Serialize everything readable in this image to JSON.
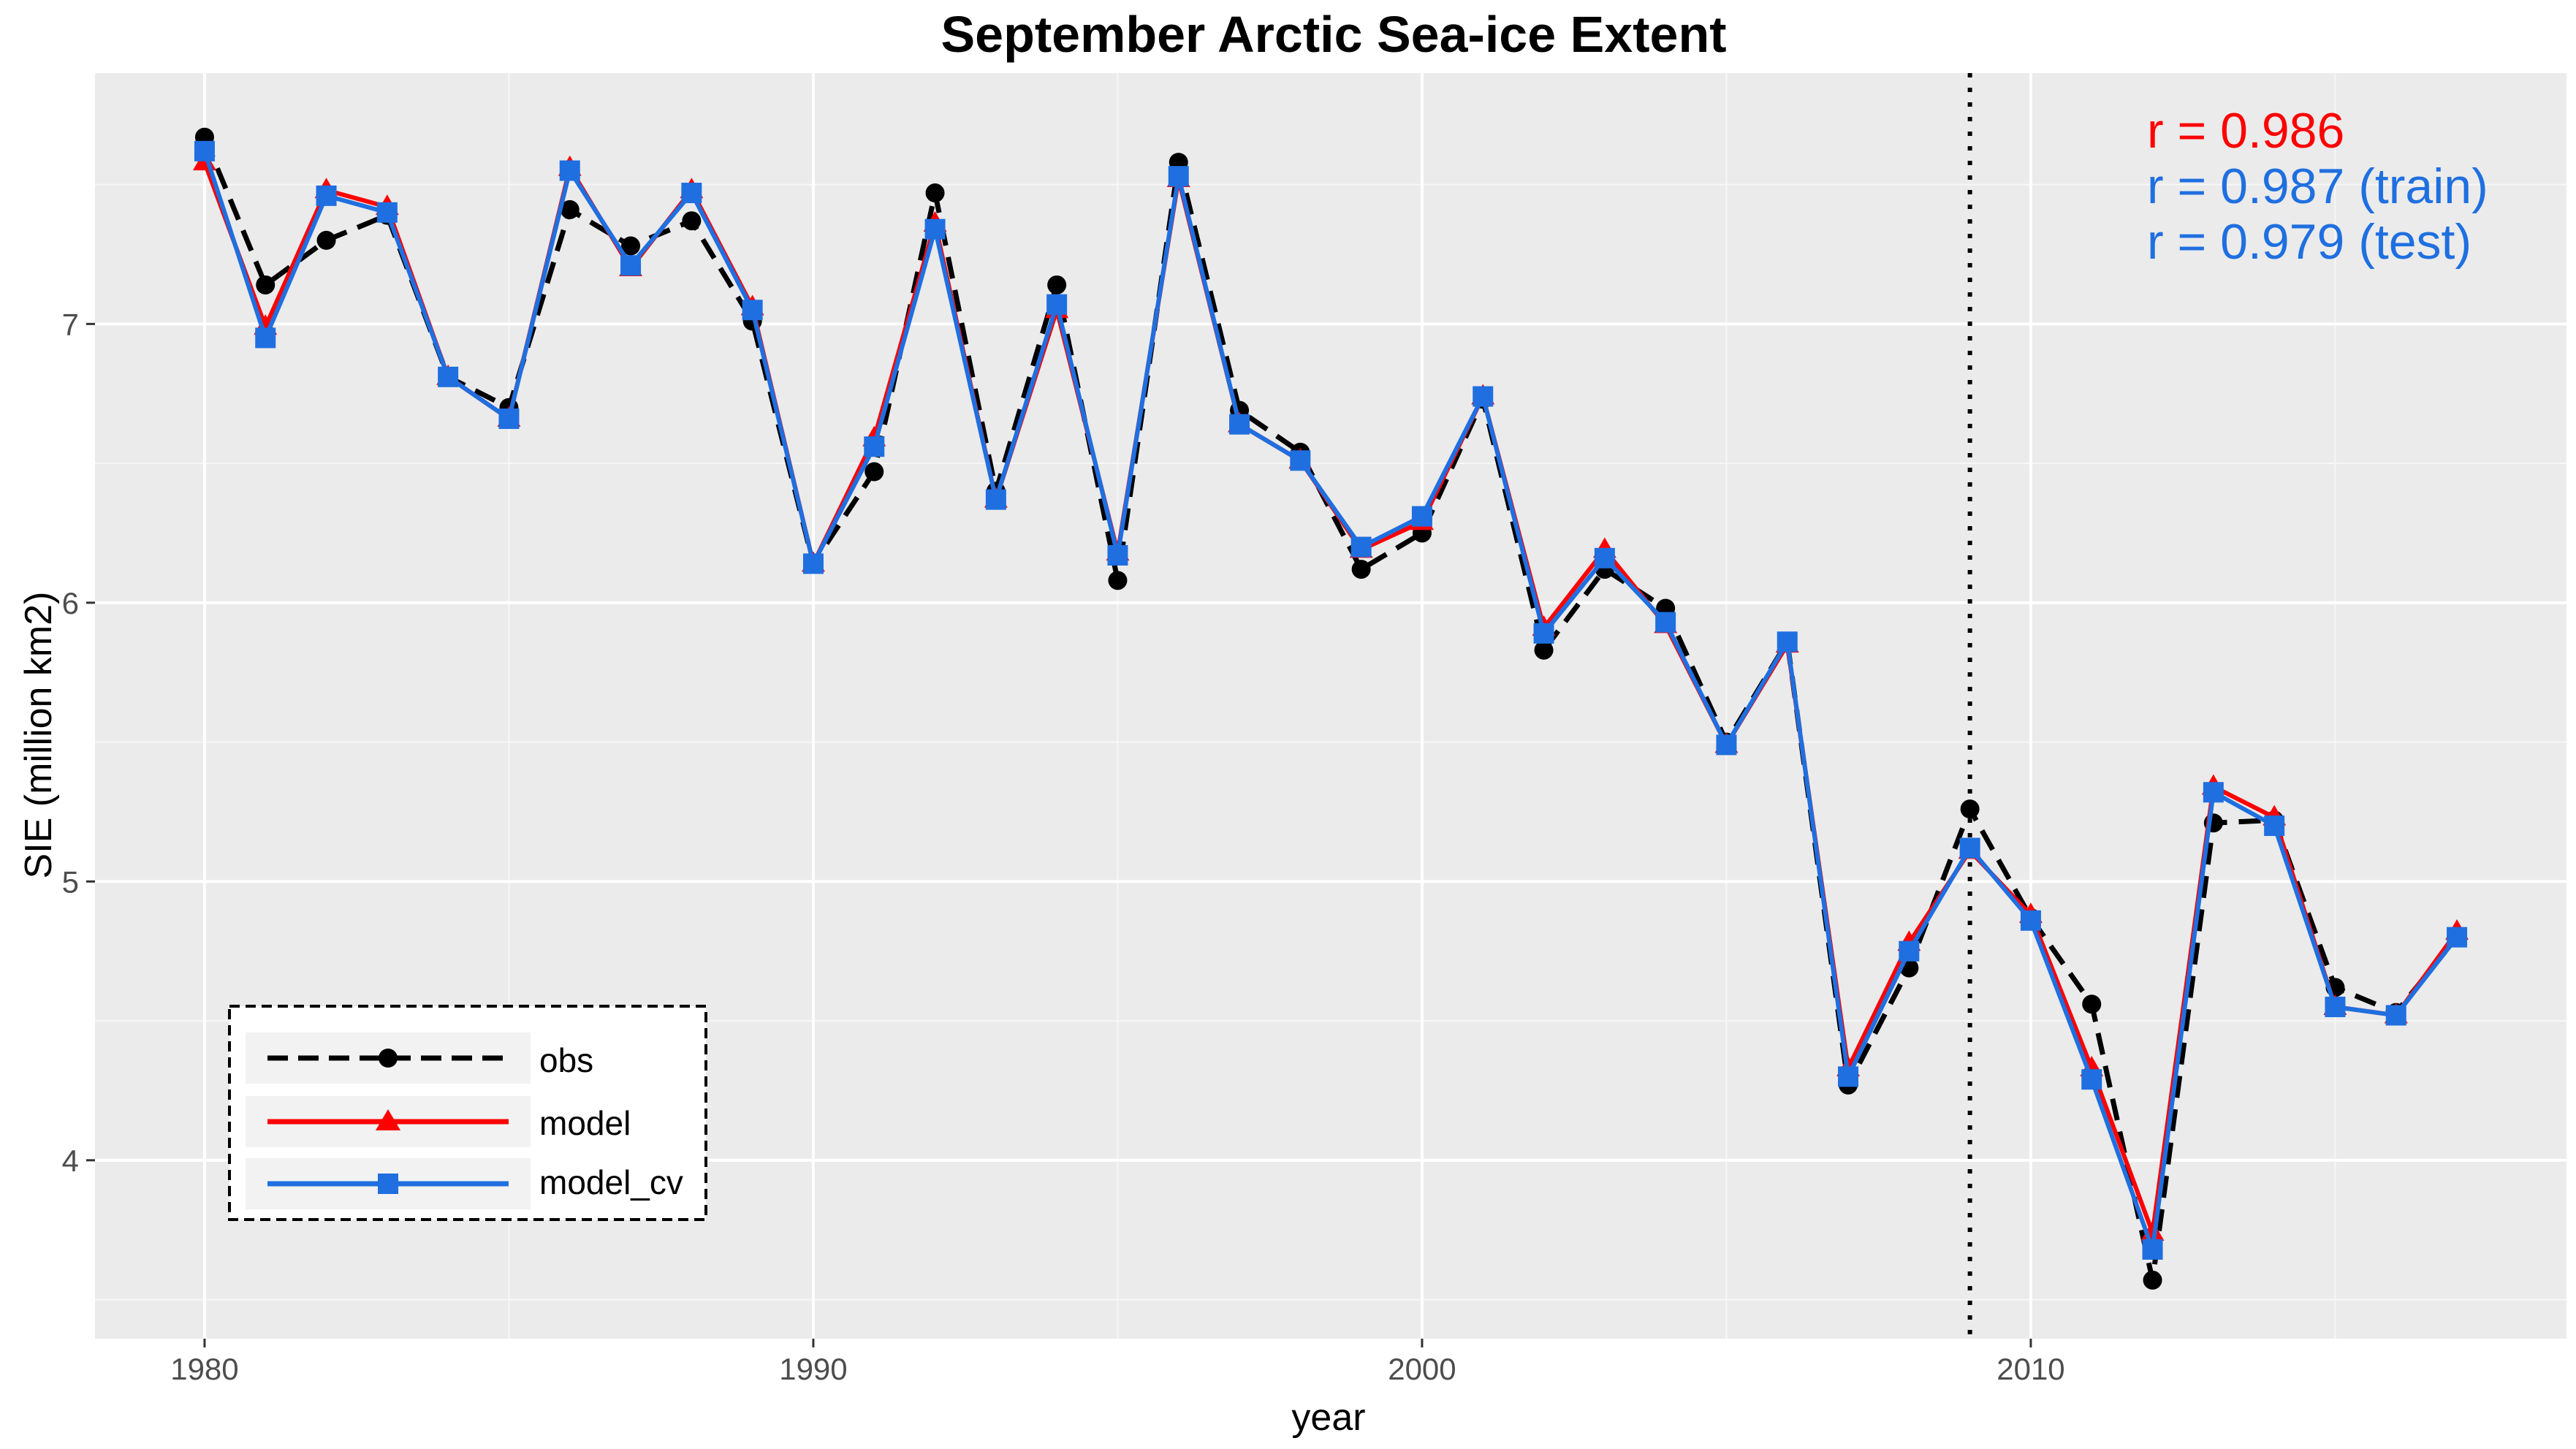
{
  "chart_data": {
    "type": "line",
    "title": "September Arctic Sea-ice Extent",
    "xlabel": "year",
    "ylabel": "SIE (million km2)",
    "xlim": [
      1978.2,
      2018.8
    ],
    "ylim": [
      3.36,
      7.9
    ],
    "x_ticks": [
      1980,
      1990,
      2000,
      2010
    ],
    "y_ticks": [
      4,
      5,
      6,
      7
    ],
    "grid": true,
    "legend_position": "bottom-left",
    "train_test_split_year": 2009,
    "x": [
      1980,
      1981,
      1982,
      1983,
      1984,
      1985,
      1986,
      1987,
      1988,
      1989,
      1990,
      1991,
      1992,
      1993,
      1994,
      1995,
      1996,
      1997,
      1998,
      1999,
      2000,
      2001,
      2002,
      2003,
      2004,
      2005,
      2006,
      2007,
      2008,
      2009,
      2010,
      2011,
      2012,
      2013,
      2014,
      2015,
      2016,
      2017
    ],
    "series": [
      {
        "name": "obs",
        "color": "#000000",
        "line_style": "dashed",
        "marker": "circle",
        "values": [
          7.67,
          7.14,
          7.3,
          7.39,
          6.81,
          6.7,
          7.41,
          7.28,
          7.37,
          7.01,
          6.14,
          6.47,
          7.47,
          6.4,
          7.14,
          6.08,
          7.58,
          6.69,
          6.54,
          6.12,
          6.25,
          6.73,
          5.83,
          6.12,
          5.98,
          5.5,
          5.86,
          4.27,
          4.69,
          5.26,
          4.87,
          4.56,
          3.57,
          5.21,
          5.22,
          4.62,
          4.53,
          4.8
        ]
      },
      {
        "name": "model",
        "color": "#ff0000",
        "line_style": "solid",
        "marker": "triangle",
        "values": [
          7.58,
          6.99,
          7.48,
          7.42,
          6.81,
          6.66,
          7.56,
          7.2,
          7.48,
          7.06,
          6.14,
          6.59,
          7.36,
          6.37,
          7.05,
          6.18,
          7.52,
          6.64,
          6.51,
          6.19,
          6.29,
          6.74,
          5.91,
          6.19,
          5.92,
          5.49,
          5.85,
          4.33,
          4.78,
          5.11,
          4.88,
          4.33,
          3.74,
          5.34,
          5.23,
          4.55,
          4.52,
          4.82
        ]
      },
      {
        "name": "model_cv",
        "color": "#1f6fe0",
        "line_style": "solid",
        "marker": "square",
        "values": [
          7.62,
          6.95,
          7.46,
          7.4,
          6.81,
          6.66,
          7.55,
          7.21,
          7.47,
          7.05,
          6.14,
          6.56,
          7.34,
          6.37,
          7.07,
          6.17,
          7.53,
          6.64,
          6.51,
          6.2,
          6.31,
          6.74,
          5.89,
          6.16,
          5.93,
          5.49,
          5.86,
          4.3,
          4.75,
          5.12,
          4.86,
          4.29,
          3.68,
          5.32,
          5.2,
          4.55,
          4.52,
          4.8
        ]
      }
    ],
    "annotations": [
      {
        "text": "r = 0.986",
        "color": "#ff0000"
      },
      {
        "text": "r = 0.987 (train)",
        "color": "#1f6fe0"
      },
      {
        "text": "r = 0.979 (test)",
        "color": "#1f6fe0"
      }
    ]
  }
}
